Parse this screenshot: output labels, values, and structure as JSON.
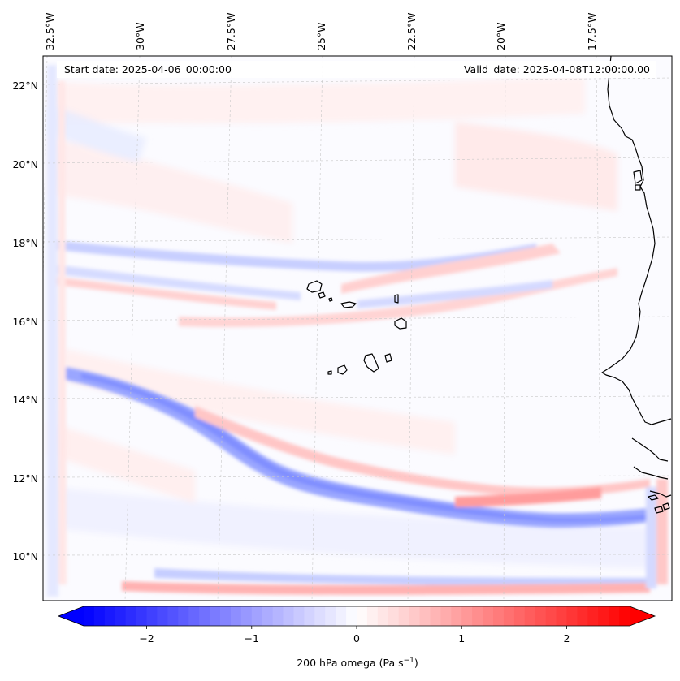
{
  "header": {
    "start_date": "Start date: 2025-04-06_00:00:00",
    "valid_date": "Valid_date: 2025-04-08T12:00:00.00"
  },
  "longitude_labels": [
    "32.5°W",
    "30°W",
    "27.5°W",
    "25°W",
    "22.5°W",
    "20°W",
    "17.5°W"
  ],
  "latitude_labels": [
    "22°N",
    "20°N",
    "18°N",
    "16°N",
    "14°N",
    "12°N",
    "10°N"
  ],
  "colorbar": {
    "ticks": [
      "−2",
      "−1",
      "0",
      "1",
      "2"
    ],
    "tick_values": [
      -2,
      -1,
      0,
      1,
      2
    ],
    "range": [
      -2.6,
      2.6
    ],
    "label_main": "200 hPa omega (Pa s",
    "label_sup": "−1",
    "label_end": ")",
    "colormap": "bwr",
    "low_color": "#0000ff",
    "mid_color": "#ffffff",
    "high_color": "#ff0000"
  },
  "colors": {
    "coast": "#000000",
    "grid": "#c8c8c8",
    "weak_blue": "#e6e9ff",
    "weak_red": "#ffe4e4",
    "mid_blue": "#b8c0ff",
    "strong_blue": "#8a96ff",
    "mid_red": "#ffb4b4",
    "strong_red": "#ff8a8a"
  }
}
